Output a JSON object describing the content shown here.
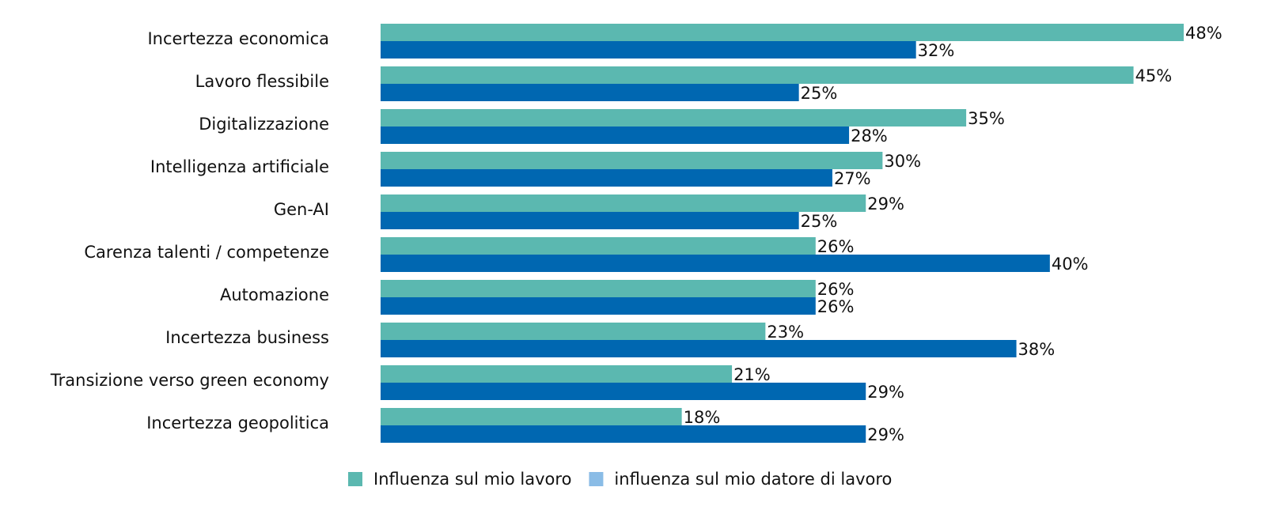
{
  "chart_data": {
    "type": "hbar",
    "categories": [
      "Incertezza economica",
      "Lavoro flessibile",
      "Digitalizzazione",
      "Intelligenza artificiale",
      "Gen-AI",
      "Carenza talenti / competenze",
      "Automazione",
      "Incertezza business",
      "Transizione verso green economy",
      "Incertezza geopolitica"
    ],
    "series": [
      {
        "name": "Influenza sul mio lavoro",
        "color": "#5bb8b0",
        "legend_color": "#5bb8b0",
        "values": [
          48,
          45,
          35,
          30,
          29,
          26,
          26,
          23,
          21,
          18
        ],
        "value_labels": [
          "48%",
          "45%",
          "35%",
          "30%",
          "29%",
          "26%",
          "26%",
          "23%",
          "21%",
          "18%"
        ]
      },
      {
        "name": "influenza sul mio datore di lavoro",
        "color": "#0067b1",
        "legend_color": "#8abce6",
        "values": [
          32,
          25,
          28,
          27,
          25,
          40,
          26,
          38,
          29,
          29
        ],
        "value_labels": [
          "32%",
          "25%",
          "28%",
          "27%",
          "25%",
          "40%",
          "26%",
          "38%",
          "29%",
          "29%"
        ]
      }
    ],
    "legend": "bottom"
  }
}
